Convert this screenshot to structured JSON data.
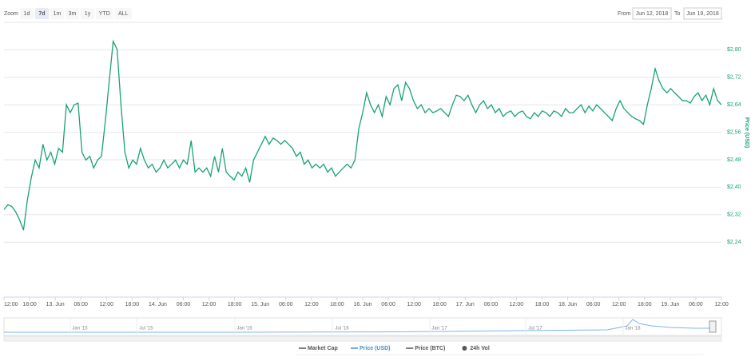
{
  "chart_data": {
    "type": "line",
    "zoom_label": "Zoom",
    "zoom_buttons": [
      "1d",
      "7d",
      "1m",
      "3m",
      "1y",
      "YTD",
      "ALL"
    ],
    "zoom_selected": "7d",
    "from_label": "From",
    "from_value": "Jun 12, 2018",
    "to_label": "To",
    "to_value": "Jun 19, 2018",
    "y_axis_label": "Price (USD)",
    "x_labels": [
      "12:00",
      "18:00",
      "13. Jun",
      "06:00",
      "12:00",
      "18:00",
      "14. Jun",
      "06:00",
      "12:00",
      "18:00",
      "15. Jun",
      "06:00",
      "12:00",
      "18:00",
      "16. Jun",
      "06:00",
      "12:00",
      "18:00",
      "17. Jun",
      "06:00",
      "12:00",
      "18:00",
      "18. Jun",
      "06:00",
      "12:00",
      "18:00",
      "19. Jun",
      "06:00",
      "12:00"
    ],
    "ylim": [
      2.08,
      2.88
    ],
    "yticks": [
      {
        "value": 2.24,
        "label": "$2,24"
      },
      {
        "value": 2.32,
        "label": "$2,32"
      },
      {
        "value": 2.4,
        "label": "$2,40"
      },
      {
        "value": 2.48,
        "label": "$2,48"
      },
      {
        "value": 2.56,
        "label": "$2,56"
      },
      {
        "value": 2.64,
        "label": "$2,64"
      },
      {
        "value": 2.72,
        "label": "$2,72"
      },
      {
        "value": 2.8,
        "label": "$2,80"
      }
    ],
    "grid": true,
    "series": [
      {
        "name": "Price (USD)",
        "color": "#18a275",
        "values": [
          2.335,
          2.349,
          2.344,
          2.328,
          2.305,
          2.275,
          2.363,
          2.428,
          2.479,
          2.456,
          2.525,
          2.479,
          2.502,
          2.467,
          2.513,
          2.502,
          2.64,
          2.617,
          2.64,
          2.645,
          2.502,
          2.479,
          2.49,
          2.456,
          2.479,
          2.49,
          2.594,
          2.71,
          2.825,
          2.802,
          2.64,
          2.502,
          2.456,
          2.479,
          2.467,
          2.513,
          2.479,
          2.456,
          2.467,
          2.444,
          2.456,
          2.479,
          2.456,
          2.467,
          2.479,
          2.456,
          2.479,
          2.467,
          2.536,
          2.444,
          2.456,
          2.444,
          2.456,
          2.432,
          2.49,
          2.444,
          2.513,
          2.444,
          2.432,
          2.421,
          2.444,
          2.432,
          2.456,
          2.414,
          2.479,
          2.502,
          2.525,
          2.548,
          2.525,
          2.543,
          2.536,
          2.525,
          2.536,
          2.525,
          2.513,
          2.49,
          2.502,
          2.467,
          2.479,
          2.456,
          2.467,
          2.456,
          2.467,
          2.444,
          2.456,
          2.432,
          2.444,
          2.456,
          2.467,
          2.456,
          2.479,
          2.571,
          2.617,
          2.675,
          2.64,
          2.617,
          2.64,
          2.606,
          2.664,
          2.64,
          2.687,
          2.698,
          2.652,
          2.705,
          2.687,
          2.652,
          2.629,
          2.64,
          2.617,
          2.629,
          2.617,
          2.622,
          2.629,
          2.617,
          2.606,
          2.64,
          2.668,
          2.664,
          2.652,
          2.668,
          2.64,
          2.617,
          2.64,
          2.652,
          2.629,
          2.64,
          2.617,
          2.629,
          2.606,
          2.617,
          2.622,
          2.606,
          2.617,
          2.622,
          2.606,
          2.599,
          2.617,
          2.606,
          2.622,
          2.617,
          2.606,
          2.622,
          2.617,
          2.606,
          2.629,
          2.617,
          2.617,
          2.629,
          2.64,
          2.617,
          2.636,
          2.622,
          2.64,
          2.629,
          2.617,
          2.606,
          2.594,
          2.629,
          2.652,
          2.629,
          2.617,
          2.606,
          2.599,
          2.594,
          2.583,
          2.64,
          2.687,
          2.745,
          2.71,
          2.687,
          2.675,
          2.687,
          2.675,
          2.664,
          2.652,
          2.652,
          2.645,
          2.664,
          2.675,
          2.652,
          2.668,
          2.64,
          2.687,
          2.652,
          2.64
        ]
      }
    ],
    "navigator_labels": [
      "Jan '15",
      "Jul '15",
      "Jan '16",
      "Jul '16",
      "Jan '17",
      "Jul '17",
      "Jan '18"
    ],
    "legend_items": [
      {
        "name": "Market Cap",
        "color": "#555555",
        "symbol": "line"
      },
      {
        "name": "Price (USD)",
        "color": "#4a8ec2",
        "symbol": "line"
      },
      {
        "name": "Price (BTC)",
        "color": "#555555",
        "symbol": "line"
      },
      {
        "name": "24h Vol",
        "color": "#555555",
        "symbol": "dot"
      }
    ]
  }
}
